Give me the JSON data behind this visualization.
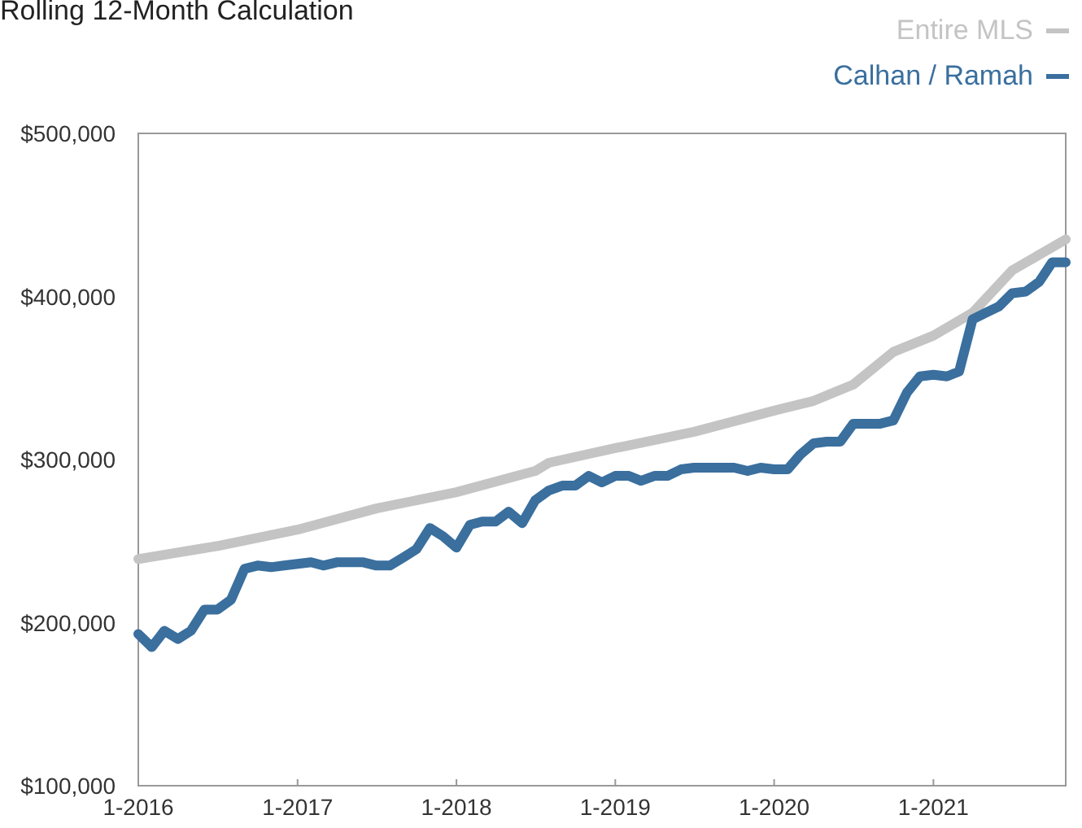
{
  "chart_data": {
    "type": "line",
    "title": "Rolling 12-Month Calculation",
    "legend": "top right",
    "grid": false,
    "xlim": [
      "2016-01",
      "2021-11"
    ],
    "xticks": [
      {
        "value": "2016-01",
        "label": "1-2016"
      },
      {
        "value": "2017-01",
        "label": "1-2017"
      },
      {
        "value": "2018-01",
        "label": "1-2018"
      },
      {
        "value": "2019-01",
        "label": "1-2019"
      },
      {
        "value": "2020-01",
        "label": "1-2020"
      },
      {
        "value": "2021-01",
        "label": "1-2021"
      }
    ],
    "ylim": [
      100000,
      500000
    ],
    "yticks": [
      {
        "value": 100000,
        "label": "$100,000"
      },
      {
        "value": 200000,
        "label": "$200,000"
      },
      {
        "value": 300000,
        "label": "$300,000"
      },
      {
        "value": 400000,
        "label": "$400,000"
      },
      {
        "value": 500000,
        "label": "$500,000"
      }
    ],
    "series": [
      {
        "name": "Entire MLS",
        "color": "#c4c4c4",
        "x": [
          "2016-01",
          "2016-07",
          "2017-01",
          "2017-07",
          "2018-01",
          "2018-07",
          "2018-08",
          "2019-01",
          "2019-07",
          "2020-01",
          "2020-04",
          "2020-07",
          "2020-10",
          "2021-01",
          "2021-04",
          "2021-07",
          "2021-11"
        ],
        "values": [
          239000,
          247000,
          257000,
          270000,
          280000,
          293000,
          298000,
          307000,
          317000,
          330000,
          336000,
          346000,
          366000,
          376000,
          390000,
          416000,
          435000
        ]
      },
      {
        "name": "Calhan / Ramah",
        "color": "#3a6f9e",
        "x": [
          "2016-01",
          "2016-02",
          "2016-03",
          "2016-04",
          "2016-05",
          "2016-06",
          "2016-07",
          "2016-08",
          "2016-09",
          "2016-10",
          "2016-11",
          "2016-12",
          "2017-01",
          "2017-02",
          "2017-03",
          "2017-04",
          "2017-05",
          "2017-06",
          "2017-07",
          "2017-08",
          "2017-09",
          "2017-10",
          "2017-11",
          "2017-12",
          "2018-01",
          "2018-02",
          "2018-03",
          "2018-04",
          "2018-05",
          "2018-06",
          "2018-07",
          "2018-08",
          "2018-09",
          "2018-10",
          "2018-11",
          "2018-12",
          "2019-01",
          "2019-02",
          "2019-03",
          "2019-04",
          "2019-05",
          "2019-06",
          "2019-07",
          "2019-08",
          "2019-09",
          "2019-10",
          "2019-11",
          "2019-12",
          "2020-01",
          "2020-02",
          "2020-03",
          "2020-04",
          "2020-05",
          "2020-06",
          "2020-07",
          "2020-08",
          "2020-09",
          "2020-10",
          "2020-11",
          "2020-12",
          "2021-01",
          "2021-02",
          "2021-03",
          "2021-04",
          "2021-05",
          "2021-06",
          "2021-07",
          "2021-08",
          "2021-09",
          "2021-10",
          "2021-11"
        ],
        "values": [
          193000,
          185000,
          195000,
          190000,
          195000,
          208000,
          208000,
          214000,
          233000,
          235000,
          234000,
          235000,
          236000,
          237000,
          235000,
          237000,
          237000,
          237000,
          235000,
          235000,
          240000,
          245000,
          258000,
          253000,
          246000,
          260000,
          262000,
          262000,
          268000,
          261000,
          275000,
          281000,
          284000,
          284000,
          290000,
          286000,
          290000,
          290000,
          287000,
          290000,
          290000,
          294000,
          295000,
          295000,
          295000,
          295000,
          293000,
          295000,
          294000,
          294000,
          303000,
          310000,
          311000,
          311000,
          322000,
          322000,
          322000,
          324000,
          341000,
          351000,
          352000,
          351000,
          354000,
          386000,
          390000,
          394000,
          402000,
          403000,
          409000,
          421000,
          421000
        ]
      }
    ]
  }
}
